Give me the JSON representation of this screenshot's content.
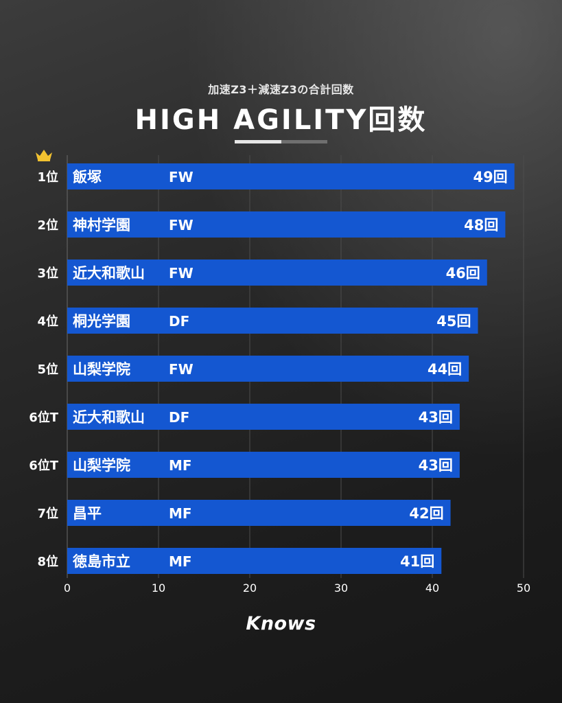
{
  "header": {
    "subtitle": "加速Z3＋減速Z3の合計回数",
    "title": "HIGH AGILITY回数"
  },
  "brand": {
    "logo_text": "Knows"
  },
  "colors": {
    "bar": "#1457d1",
    "crown": "#f2c230",
    "grid": "#4d4d4d"
  },
  "icons": {
    "rank1": "crown-icon"
  },
  "chart_data": {
    "type": "bar",
    "orientation": "horizontal",
    "categories": [
      "1位",
      "2位",
      "3位",
      "4位",
      "5位",
      "6位T",
      "6位T",
      "7位",
      "8位"
    ],
    "schools": [
      "飯塚",
      "神村学園",
      "近大和歌山",
      "桐光学園",
      "山梨学院",
      "近大和歌山",
      "山梨学院",
      "昌平",
      "徳島市立"
    ],
    "positions": [
      "FW",
      "FW",
      "FW",
      "DF",
      "FW",
      "DF",
      "MF",
      "MF",
      "MF"
    ],
    "values": [
      49,
      48,
      46,
      45,
      44,
      43,
      43,
      42,
      41
    ],
    "value_labels": [
      "49回",
      "48回",
      "46回",
      "45回",
      "44回",
      "43回",
      "43回",
      "42回",
      "41回"
    ],
    "xlim": [
      0,
      50
    ],
    "xticks": [
      0,
      10,
      20,
      30,
      40,
      50
    ],
    "xtick_labels": [
      "0",
      "10",
      "20",
      "30",
      "40",
      "50"
    ],
    "grid": true,
    "legend": "none"
  }
}
